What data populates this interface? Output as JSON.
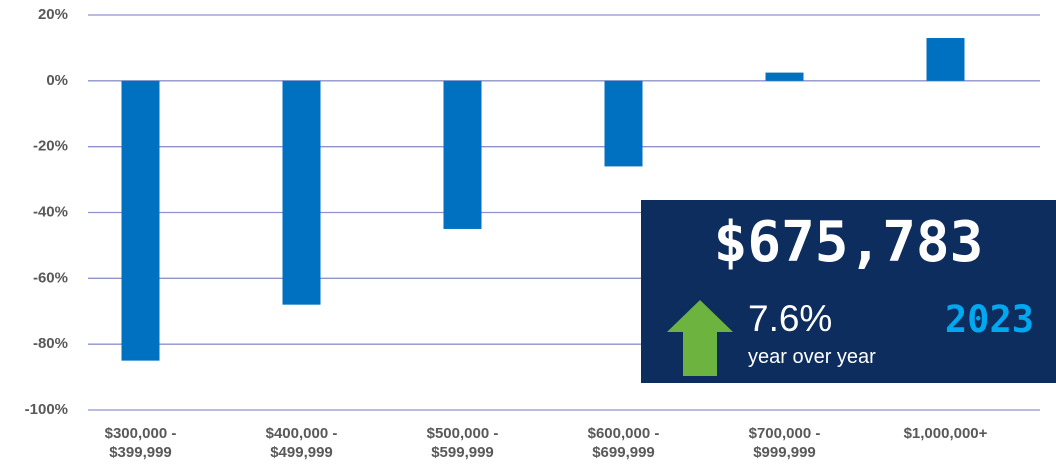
{
  "chart_data": {
    "type": "bar",
    "categories": [
      "$300,000 - $399,999",
      "$400,000 - $499,999",
      "$500,000 - $599,999",
      "$600,000 - $699,999",
      "$700,000 - $999,999",
      "$1,000,000+"
    ],
    "values": [
      -85,
      -68,
      -45,
      -26,
      2.5,
      13
    ],
    "color": "#0070c0",
    "ylim": [
      -100,
      20
    ],
    "yticks": [
      {
        "value": -100,
        "label": "-100%"
      },
      {
        "value": -80,
        "label": "-80%"
      },
      {
        "value": -60,
        "label": "-60%"
      },
      {
        "value": -40,
        "label": "-40%"
      },
      {
        "value": -20,
        "label": "-20%"
      },
      {
        "value": 0,
        "label": "0%"
      },
      {
        "value": 20,
        "label": "20%"
      }
    ],
    "grid": true,
    "annotation": {
      "price": "$675,783",
      "change": "7.6%",
      "change_label": "year over year",
      "year": "2023"
    }
  }
}
